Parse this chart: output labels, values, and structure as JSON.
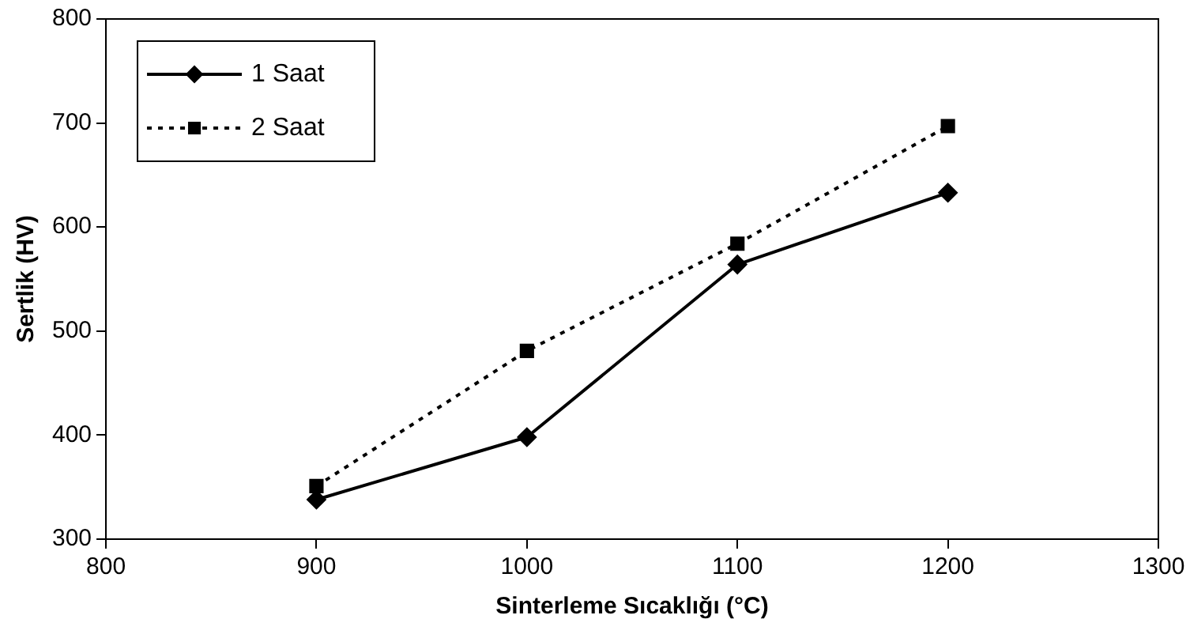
{
  "chart_data": {
    "type": "line",
    "xlabel": "Sinterleme Sıcaklığı (°C)",
    "ylabel": "Sertlik (HV)",
    "x": [
      900,
      1000,
      1100,
      1200
    ],
    "series": [
      {
        "name": "1 Saat",
        "color": "#000000",
        "values": [
          338,
          398,
          564,
          633
        ],
        "marker": "diamond",
        "line_style": "solid"
      },
      {
        "name": "2 Saat",
        "color": "#000000",
        "values": [
          351,
          481,
          584,
          697
        ],
        "marker": "square",
        "line_style": "dotted"
      }
    ],
    "xlim": [
      800,
      1300
    ],
    "xticks": [
      800,
      900,
      1000,
      1100,
      1200,
      1300
    ],
    "ylim": [
      300,
      800
    ],
    "yticks": [
      300,
      400,
      500,
      600,
      700,
      800
    ],
    "grid": false,
    "legend": "top left"
  }
}
